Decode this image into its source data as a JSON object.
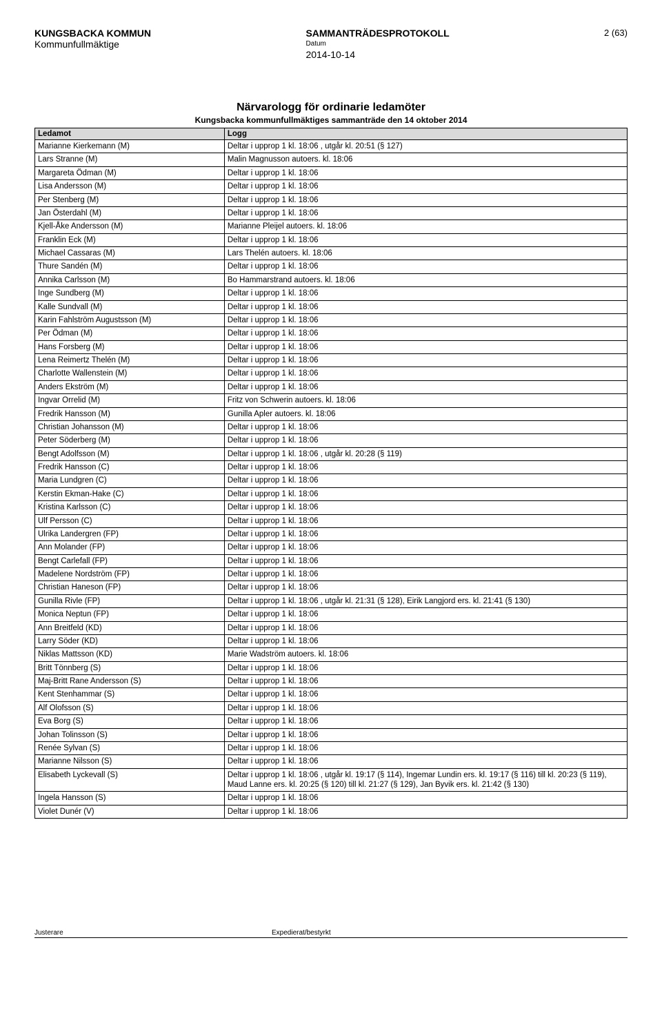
{
  "header": {
    "org": "KUNGSBACKA KOMMUN",
    "body": "Kommunfullmäktige",
    "doctype": "SAMMANTRÄDESPROTOKOLL",
    "datum_label": "Datum",
    "date": "2014-10-14",
    "page": "2 (63)"
  },
  "title": "Närvarologg för ordinarie ledamöter",
  "subtitle": "Kungsbacka kommunfullmäktiges sammanträde den 14 oktober 2014",
  "columns": [
    "Ledamot",
    "Logg"
  ],
  "rows": [
    [
      "Marianne Kierkemann (M)",
      "Deltar i upprop 1 kl. 18:06 , utgår kl. 20:51 (§ 127)"
    ],
    [
      "Lars Stranne (M)",
      "Malin Magnusson autoers. kl. 18:06"
    ],
    [
      "Margareta Ödman (M)",
      "Deltar i upprop 1 kl. 18:06"
    ],
    [
      "Lisa Andersson (M)",
      "Deltar i upprop 1 kl. 18:06"
    ],
    [
      "Per Stenberg (M)",
      "Deltar i upprop 1 kl. 18:06"
    ],
    [
      "Jan Österdahl (M)",
      "Deltar i upprop 1 kl. 18:06"
    ],
    [
      "Kjell-Åke Andersson (M)",
      "Marianne Pleijel autoers. kl. 18:06"
    ],
    [
      "Franklin Eck (M)",
      "Deltar i upprop 1 kl. 18:06"
    ],
    [
      "Michael Cassaras (M)",
      "Lars Thelén autoers. kl. 18:06"
    ],
    [
      "Thure Sandén (M)",
      "Deltar i upprop 1 kl. 18:06"
    ],
    [
      "Annika Carlsson (M)",
      "Bo Hammarstrand autoers. kl. 18:06"
    ],
    [
      "Inge Sundberg (M)",
      "Deltar i upprop 1 kl. 18:06"
    ],
    [
      "Kalle Sundvall (M)",
      "Deltar i upprop 1 kl. 18:06"
    ],
    [
      "Karin Fahlström Augustsson (M)",
      "Deltar i upprop 1 kl. 18:06"
    ],
    [
      "Per Ödman (M)",
      "Deltar i upprop 1 kl. 18:06"
    ],
    [
      "Hans Forsberg (M)",
      "Deltar i upprop 1 kl. 18:06"
    ],
    [
      "Lena Reimertz Thelén (M)",
      "Deltar i upprop 1 kl. 18:06"
    ],
    [
      "Charlotte Wallenstein (M)",
      "Deltar i upprop 1 kl. 18:06"
    ],
    [
      "Anders Ekström (M)",
      "Deltar i upprop 1 kl. 18:06"
    ],
    [
      "Ingvar Orrelid (M)",
      "Fritz von Schwerin autoers. kl. 18:06"
    ],
    [
      "Fredrik Hansson (M)",
      "Gunilla Apler autoers. kl. 18:06"
    ],
    [
      "Christian Johansson (M)",
      "Deltar i upprop 1 kl. 18:06"
    ],
    [
      "Peter Söderberg (M)",
      "Deltar i upprop 1 kl. 18:06"
    ],
    [
      "Bengt Adolfsson (M)",
      "Deltar i upprop 1 kl. 18:06 , utgår kl. 20:28 (§ 119)"
    ],
    [
      "Fredrik Hansson (C)",
      "Deltar i upprop 1 kl. 18:06"
    ],
    [
      "Maria Lundgren (C)",
      "Deltar i upprop 1 kl. 18:06"
    ],
    [
      "Kerstin Ekman-Hake (C)",
      "Deltar i upprop 1 kl. 18:06"
    ],
    [
      "Kristina Karlsson (C)",
      "Deltar i upprop 1 kl. 18:06"
    ],
    [
      "Ulf Persson (C)",
      "Deltar i upprop 1 kl. 18:06"
    ],
    [
      "Ulrika Landergren (FP)",
      "Deltar i upprop 1 kl. 18:06"
    ],
    [
      "Ann Molander (FP)",
      "Deltar i upprop 1 kl. 18:06"
    ],
    [
      "Bengt Carlefall (FP)",
      "Deltar i upprop 1 kl. 18:06"
    ],
    [
      "Madelene Nordström (FP)",
      "Deltar i upprop 1 kl. 18:06"
    ],
    [
      "Christian Haneson (FP)",
      "Deltar i upprop 1 kl. 18:06"
    ],
    [
      "Gunilla Rivle (FP)",
      "Deltar i upprop 1 kl. 18:06 , utgår kl. 21:31 (§ 128), Eirik Langjord ers. kl. 21:41 (§ 130)"
    ],
    [
      "Monica Neptun (FP)",
      "Deltar i upprop 1 kl. 18:06"
    ],
    [
      "Ann Breitfeld (KD)",
      "Deltar i upprop 1 kl. 18:06"
    ],
    [
      "Larry Söder (KD)",
      "Deltar i upprop 1 kl. 18:06"
    ],
    [
      "Niklas Mattsson (KD)",
      "Marie Wadström autoers. kl. 18:06"
    ],
    [
      "Britt Tönnberg (S)",
      "Deltar i upprop 1 kl. 18:06"
    ],
    [
      "Maj-Britt Rane Andersson (S)",
      "Deltar i upprop 1 kl. 18:06"
    ],
    [
      "Kent Stenhammar (S)",
      "Deltar i upprop 1 kl. 18:06"
    ],
    [
      "Alf Olofsson (S)",
      "Deltar i upprop 1 kl. 18:06"
    ],
    [
      "Eva Borg (S)",
      "Deltar i upprop 1 kl. 18:06"
    ],
    [
      "Johan Tolinsson (S)",
      "Deltar i upprop 1 kl. 18:06"
    ],
    [
      "Renée Sylvan (S)",
      "Deltar i upprop 1 kl. 18:06"
    ],
    [
      "Marianne Nilsson (S)",
      "Deltar i upprop 1 kl. 18:06"
    ],
    [
      "Elisabeth Lyckevall (S)",
      "Deltar i upprop 1 kl. 18:06 , utgår kl. 19:17 (§ 114), Ingemar Lundin ers. kl. 19:17 (§ 116) till kl. 20:23 (§ 119), Maud Lanne ers. kl. 20:25 (§ 120) till kl. 21:27 (§ 129), Jan Byvik ers. kl. 21:42 (§ 130)"
    ],
    [
      "Ingela Hansson (S)",
      "Deltar i upprop 1 kl. 18:06"
    ],
    [
      "Violet Dunér (V)",
      "Deltar i upprop 1 kl. 18:06"
    ]
  ],
  "footer": {
    "label1": "Justerare",
    "label2": "Expedierat/bestyrkt"
  }
}
